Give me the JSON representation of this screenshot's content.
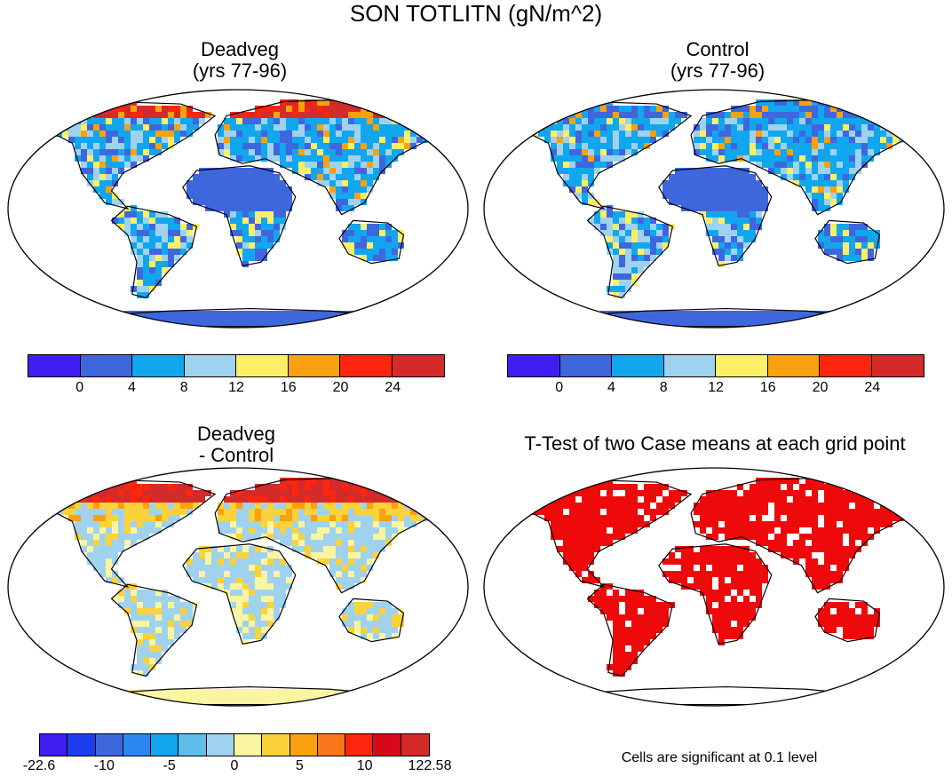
{
  "figure": {
    "title": "SON TOTLITN (gN/m^2)",
    "footnote": "Cells are significant at 0.1 level"
  },
  "panels": [
    {
      "id": "deadveg",
      "title_line1": "Deadveg",
      "title_line2": "(yrs 77-96)"
    },
    {
      "id": "control",
      "title_line1": "Control",
      "title_line2": "(yrs 77-96)"
    },
    {
      "id": "difference",
      "title_line1": "Deadveg",
      "title_line2": "- Control"
    },
    {
      "id": "ttest",
      "title_line1": "T-Test of two Case means at each grid point",
      "title_line2": ""
    }
  ],
  "colorbars": {
    "absolute": {
      "colors": [
        "#3f1ef4",
        "#3f67dd",
        "#12a6ee",
        "#9fd2ee",
        "#fbef67",
        "#f9a10f",
        "#fb260d",
        "#d52a2a"
      ],
      "labels": [
        "0",
        "4",
        "8",
        "12",
        "16",
        "20",
        "24"
      ]
    },
    "difference": {
      "colors": [
        "#3f1ef4",
        "#1d3ef0",
        "#3f67dd",
        "#2b87ee",
        "#12a6ee",
        "#5fbde9",
        "#9fd2ee",
        "#fbf4a0",
        "#fbd23a",
        "#f9a10f",
        "#f9761b",
        "#fb260d",
        "#d8081a",
        "#d52a2a"
      ],
      "labels": [
        "-22.6",
        "-10",
        "-5",
        "0",
        "5",
        "10",
        "122.58"
      ]
    }
  },
  "map_colors": {
    "ocean": "#ffffff",
    "coast": "#000000",
    "significant": "#ee0a0a"
  }
}
